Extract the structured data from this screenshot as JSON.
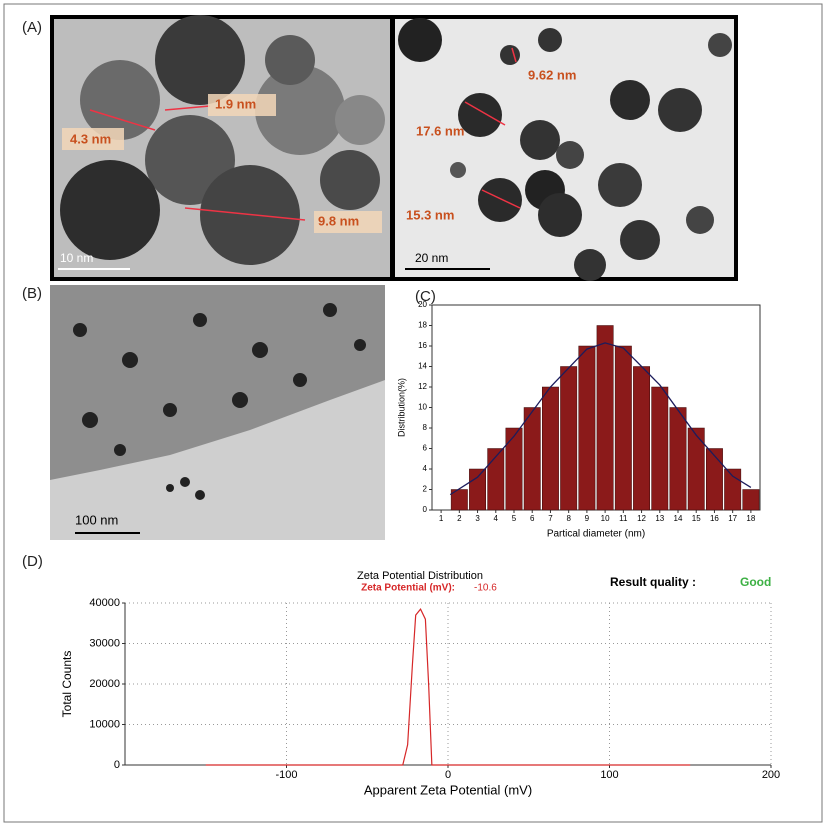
{
  "panels": {
    "a_label": "(A)",
    "b_label": "(B)",
    "c_label": "(C)",
    "d_label": "(D)",
    "a_left": {
      "annotations": [
        "4.3 nm",
        "1.9 nm",
        "9.8 nm"
      ],
      "scale_bar": "10 nm"
    },
    "a_right": {
      "annotations": [
        "9.62 nm",
        "17.6 nm",
        "15.3 nm"
      ],
      "scale_bar": "20 nm"
    },
    "b": {
      "scale_bar": "100 nm"
    }
  },
  "chart_data": [
    {
      "type": "bar",
      "x": [
        2,
        3,
        4,
        5,
        6,
        7,
        8,
        9,
        10,
        11,
        12,
        13,
        14,
        15,
        16,
        17,
        18
      ],
      "values": [
        2,
        4,
        6,
        8,
        10,
        12,
        14,
        16,
        18,
        16,
        14,
        12,
        10,
        8,
        6,
        4,
        2
      ],
      "color": "#8b1a1a",
      "fit": {
        "x": [
          1.5,
          3,
          5,
          7,
          9,
          10,
          11,
          13,
          15,
          17,
          18
        ],
        "values": [
          1.5,
          3.2,
          7.2,
          12,
          15.7,
          16.3,
          15.8,
          12.2,
          7.3,
          3.3,
          2.2
        ],
        "color": "#1c1c5c"
      },
      "xlim": [
        0.5,
        18.5
      ],
      "xticks": [
        1,
        2,
        3,
        4,
        5,
        6,
        7,
        8,
        9,
        10,
        11,
        12,
        13,
        14,
        15,
        16,
        17,
        18
      ],
      "ylim": [
        0,
        20
      ],
      "yticks": [
        0,
        2,
        4,
        6,
        8,
        10,
        12,
        14,
        16,
        18,
        20
      ],
      "xlabel": "Partical diameter (nm)",
      "ylabel": "Distribution(%)"
    },
    {
      "type": "line",
      "title": "Zeta Potential Distribution",
      "subtitle_label": "Zeta Potential (mV):",
      "subtitle_value": "-10.6",
      "subtitle_color": "#d62728",
      "result_label": "Result quality :",
      "result": "Good",
      "result_color": "#3cb043",
      "x": [
        -150,
        -28,
        -25,
        -22,
        -20,
        -17,
        -14,
        -12,
        -10,
        150
      ],
      "values": [
        0,
        0,
        5000,
        25000,
        37000,
        38500,
        36000,
        20000,
        0,
        0
      ],
      "color": "#d62728",
      "xlim": [
        -200,
        200
      ],
      "xticks": [
        -100,
        0,
        100,
        200
      ],
      "ylim": [
        0,
        40000
      ],
      "yticks": [
        0,
        10000,
        20000,
        30000,
        40000
      ],
      "grid": true,
      "xlabel": "Apparent Zeta Potential (mV)",
      "ylabel": "Total Counts"
    }
  ]
}
